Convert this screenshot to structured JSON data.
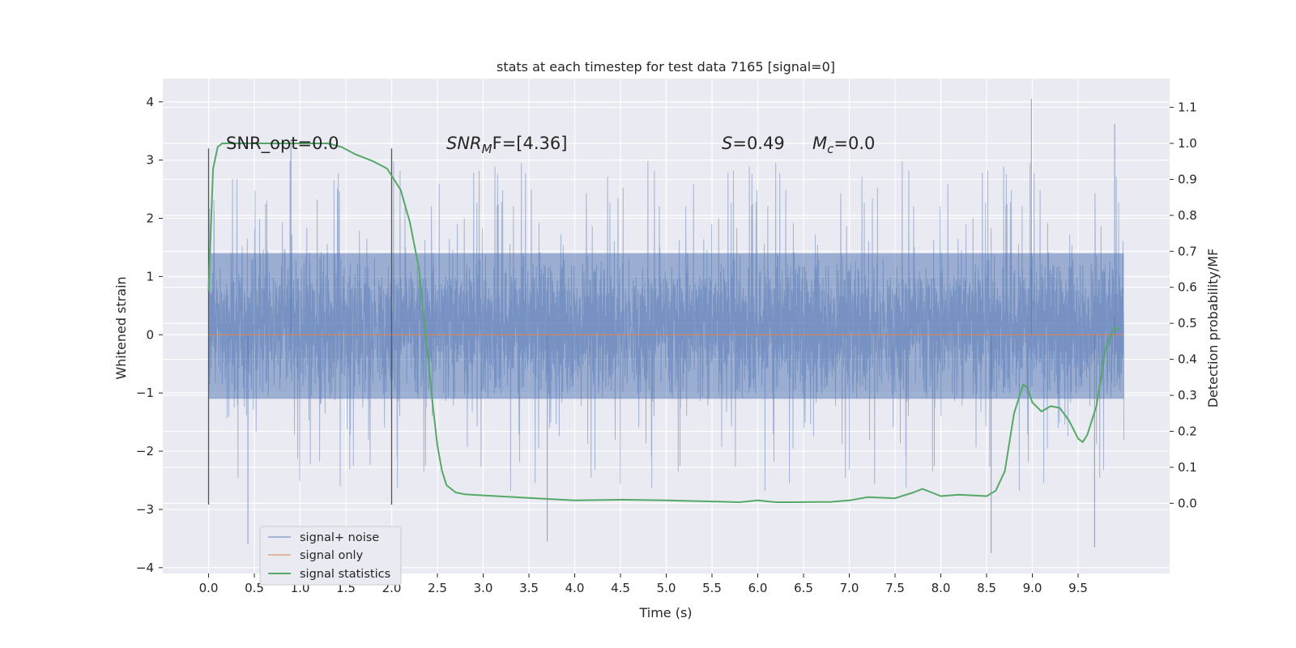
{
  "chart_data": {
    "type": "line",
    "title": "stats at each timestep for test data 7165 [signal=0]",
    "xlabel": "Time (s)",
    "ylabel": "Whitened strain",
    "y2label": "Detection probability/MF",
    "xlim": [
      -0.5,
      10.5
    ],
    "ylim": [
      -4.1,
      4.4
    ],
    "y2lim": [
      -0.195,
      1.18
    ],
    "x_ticks": [
      0.0,
      0.5,
      1.0,
      1.5,
      2.0,
      2.5,
      3.0,
      3.5,
      4.0,
      4.5,
      5.0,
      5.5,
      6.0,
      6.5,
      7.0,
      7.5,
      8.0,
      8.5,
      9.0,
      9.5
    ],
    "x_tick_labels": [
      "0.0",
      "0.5",
      "1.0",
      "1.5",
      "2.0",
      "2.5",
      "3.0",
      "3.5",
      "4.0",
      "4.5",
      "5.0",
      "5.5",
      "6.0",
      "6.5",
      "7.0",
      "7.5",
      "8.0",
      "8.5",
      "9.0",
      "9.5"
    ],
    "y_ticks": [
      -4,
      -3,
      -2,
      -1,
      0,
      1,
      2,
      3,
      4
    ],
    "y_tick_labels": [
      "−4",
      "−3",
      "−2",
      "−1",
      "0",
      "1",
      "2",
      "3",
      "4"
    ],
    "y2_ticks": [
      0.0,
      0.1,
      0.2,
      0.3,
      0.4,
      0.5,
      0.6,
      0.7,
      0.8,
      0.9,
      1.0,
      1.1
    ],
    "y2_tick_labels": [
      "0.0",
      "0.1",
      "0.2",
      "0.3",
      "0.4",
      "0.5",
      "0.6",
      "0.7",
      "0.8",
      "0.9",
      "1.0",
      "1.1"
    ],
    "grid": true,
    "legend_position": "lower-left",
    "annotations": {
      "snr_opt": "SNR_opt=0.0",
      "snr_mf_sym": "SNR",
      "snr_mf_sub": "M",
      "snr_mf_rest": "F=[4.36]",
      "s_sym": "S",
      "s_rest": "=0.49",
      "mc_sym": "M",
      "mc_sub": "c",
      "mc_rest": "=0.0"
    },
    "vlines": [
      0.0,
      2.0
    ],
    "series": [
      {
        "name": "signal+ noise",
        "axis": "left",
        "color": "#4c72b0",
        "x_range": [
          0.0,
          10.0
        ],
        "typical_band": [
          -1.1,
          1.4
        ],
        "y_min": -3.75,
        "y_max": 4.05
      },
      {
        "name": "signal only",
        "axis": "left",
        "color": "#dd8452",
        "x": [
          0.0,
          10.0
        ],
        "values": [
          0.0,
          0.0
        ]
      },
      {
        "name": "signal statistics",
        "axis": "right",
        "color": "#55a868",
        "x": [
          0.0,
          0.05,
          0.1,
          0.15,
          0.25,
          0.5,
          1.0,
          1.3,
          1.45,
          1.6,
          1.8,
          1.95,
          2.1,
          2.2,
          2.3,
          2.35,
          2.4,
          2.45,
          2.5,
          2.55,
          2.6,
          2.7,
          2.8,
          3.0,
          3.5,
          4.0,
          4.5,
          5.0,
          5.5,
          5.8,
          6.0,
          6.2,
          6.4,
          6.8,
          7.0,
          7.2,
          7.5,
          7.7,
          7.8,
          7.9,
          8.0,
          8.2,
          8.5,
          8.6,
          8.7,
          8.8,
          8.9,
          8.95,
          9.0,
          9.1,
          9.2,
          9.3,
          9.4,
          9.5,
          9.55,
          9.6,
          9.7,
          9.8,
          9.9,
          9.95
        ],
        "values": [
          0.59,
          0.93,
          0.99,
          1.0,
          1.0,
          1.0,
          1.0,
          1.0,
          0.99,
          0.97,
          0.95,
          0.93,
          0.87,
          0.78,
          0.65,
          0.52,
          0.4,
          0.27,
          0.16,
          0.09,
          0.05,
          0.03,
          0.025,
          0.022,
          0.015,
          0.008,
          0.01,
          0.008,
          0.005,
          0.003,
          0.008,
          0.003,
          0.003,
          0.004,
          0.008,
          0.017,
          0.014,
          0.03,
          0.04,
          0.03,
          0.02,
          0.024,
          0.02,
          0.035,
          0.09,
          0.25,
          0.33,
          0.32,
          0.28,
          0.255,
          0.27,
          0.265,
          0.23,
          0.18,
          0.17,
          0.19,
          0.27,
          0.43,
          0.49,
          0.48
        ]
      }
    ]
  }
}
